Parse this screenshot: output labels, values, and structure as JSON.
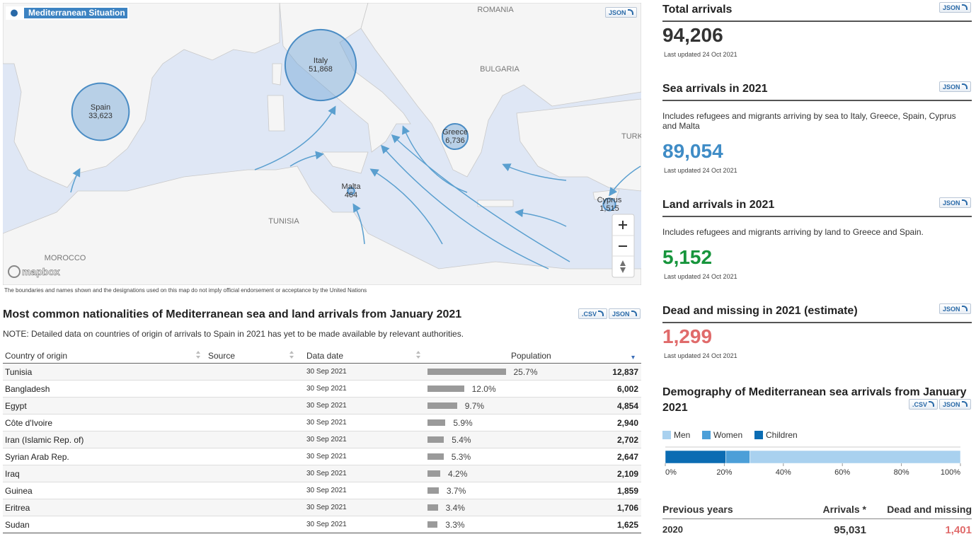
{
  "map": {
    "title": "Mediterranean Situation",
    "json_button": "JSON",
    "labels": [
      "ROMANIA",
      "BULGARIA",
      "TURK",
      "TUNISIA",
      "MOROCCO"
    ],
    "attribution": "mapbox",
    "disclaimer": "The boundaries and names shown and the designations used on this map do not imply official endorsement or acceptance by the United Nations",
    "markers": [
      {
        "name": "Spain",
        "value": 33623,
        "label": "33,623"
      },
      {
        "name": "Italy",
        "value": 51868,
        "label": "51,868"
      },
      {
        "name": "Greece",
        "value": 6736,
        "label": "6,736"
      },
      {
        "name": "Malta",
        "value": 464,
        "label": "464"
      },
      {
        "name": "Cyprus",
        "value": 1515,
        "label": "1,515"
      }
    ]
  },
  "nationalities": {
    "title": "Most common nationalities of Mediterranean sea and land arrivals from January 2021",
    "csv_button": ".CSV",
    "json_button": "JSON",
    "note": "NOTE: Detailed data on countries of origin of arrivals to Spain in 2021 has yet to be made available by relevant authorities.",
    "columns": [
      "Country of origin",
      "Source",
      "Data date",
      "Population"
    ],
    "rows": [
      {
        "country": "Tunisia",
        "date": "30 Sep 2021",
        "share": 25.7,
        "share_label": "25.7%",
        "population": "12,837"
      },
      {
        "country": "Bangladesh",
        "date": "30 Sep 2021",
        "share": 12.0,
        "share_label": "12.0%",
        "population": "6,002"
      },
      {
        "country": "Egypt",
        "date": "30 Sep 2021",
        "share": 9.7,
        "share_label": "9.7%",
        "population": "4,854"
      },
      {
        "country": "Côte d'Ivoire",
        "date": "30 Sep 2021",
        "share": 5.9,
        "share_label": "5.9%",
        "population": "2,940"
      },
      {
        "country": "Iran (Islamic Rep. of)",
        "date": "30 Sep 2021",
        "share": 5.4,
        "share_label": "5.4%",
        "population": "2,702"
      },
      {
        "country": "Syrian Arab Rep.",
        "date": "30 Sep 2021",
        "share": 5.3,
        "share_label": "5.3%",
        "population": "2,647"
      },
      {
        "country": "Iraq",
        "date": "30 Sep 2021",
        "share": 4.2,
        "share_label": "4.2%",
        "population": "2,109"
      },
      {
        "country": "Guinea",
        "date": "30 Sep 2021",
        "share": 3.7,
        "share_label": "3.7%",
        "population": "1,859"
      },
      {
        "country": "Eritrea",
        "date": "30 Sep 2021",
        "share": 3.4,
        "share_label": "3.4%",
        "population": "1,706"
      },
      {
        "country": "Sudan",
        "date": "30 Sep 2021",
        "share": 3.3,
        "share_label": "3.3%",
        "population": "1,625"
      }
    ]
  },
  "stats": [
    {
      "title": "Total arrivals",
      "button": "JSON",
      "value": "94,206",
      "updated": "Last updated 24 Oct 2021"
    },
    {
      "title": "Sea arrivals in 2021",
      "button": "JSON",
      "description": "Includes refugees and migrants arriving by sea to Italy, Greece, Spain, Cyprus and Malta",
      "value": "89,054",
      "updated": "Last updated 24 Oct 2021"
    },
    {
      "title": "Land arrivals in 2021",
      "button": "JSON",
      "description": "Includes refugees and migrants arriving by land to Greece and Spain.",
      "value": "5,152",
      "updated": "Last updated 24 Oct 2021"
    },
    {
      "title": "Dead and missing in 2021 (estimate)",
      "button": "JSON",
      "value": "1,299",
      "updated": "Last updated 24 Oct 2021"
    }
  ],
  "demography": {
    "type": "stacked-bar",
    "title": "Demography of Mediterranean sea arrivals from January 2021",
    "csv_button": ".CSV",
    "json_button": "JSON",
    "series": [
      {
        "name": "Men",
        "color": "#a9d1ef",
        "values": [
          71.4
        ]
      },
      {
        "name": "Women",
        "color": "#4c9fd8",
        "values": [
          8.1
        ]
      },
      {
        "name": "Children",
        "color": "#0b6cb3",
        "values": [
          20.5
        ]
      }
    ],
    "xlim": [
      0,
      100
    ],
    "xticks": [
      {
        "value": 0,
        "label": "0%"
      },
      {
        "value": 20,
        "label": "20%"
      },
      {
        "value": 40,
        "label": "40%"
      },
      {
        "value": 60,
        "label": "60%"
      },
      {
        "value": 80,
        "label": "80%"
      },
      {
        "value": 100,
        "label": "100%"
      }
    ]
  },
  "previous_years": {
    "columns": [
      "Previous years",
      "Arrivals *",
      "Dead and missing"
    ],
    "rows": [
      [
        "2020",
        "95,031",
        "1,401"
      ]
    ]
  }
}
